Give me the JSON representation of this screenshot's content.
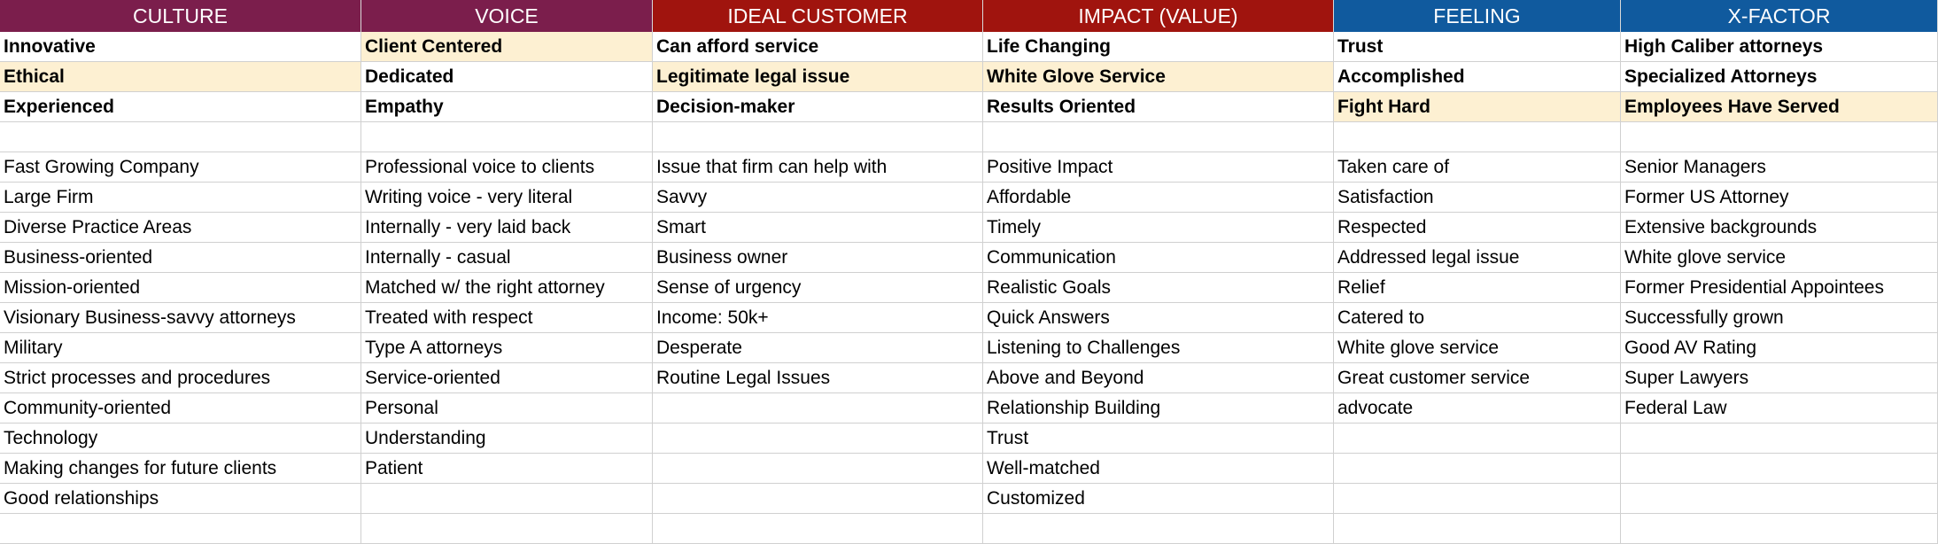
{
  "colors": {
    "culture_header": "#7b1e4c",
    "voice_header": "#7b1e4c",
    "ideal_customer_header": "#a0140e",
    "impact_header": "#a0140e",
    "feeling_header": "#105a9e",
    "xfactor_header": "#105a9e",
    "highlight": "#fdf0d2"
  },
  "columns": [
    {
      "header": "CULTURE",
      "header_color": "#7b1e4c",
      "key": [
        "Innovative",
        "Ethical",
        "Experienced"
      ],
      "highlight": [
        false,
        true,
        false
      ],
      "items": [
        "Fast Growing Company",
        "Large Firm",
        "Diverse Practice Areas",
        "Business-oriented",
        "Mission-oriented",
        "Visionary Business-savvy attorneys",
        "Military",
        "Strict processes and procedures",
        "Community-oriented",
        "Technology",
        "Making changes for future clients",
        "Good relationships"
      ]
    },
    {
      "header": "VOICE",
      "header_color": "#7b1e4c",
      "key": [
        "Client Centered",
        "Dedicated",
        "Empathy"
      ],
      "highlight": [
        true,
        false,
        false
      ],
      "items": [
        "Professional voice to clients",
        "Writing voice - very literal",
        "Internally - very laid back",
        "Internally - casual",
        "Matched w/ the right attorney",
        "Treated with respect",
        "Type A attorneys",
        "Service-oriented",
        "Personal",
        "Understanding",
        "Patient"
      ]
    },
    {
      "header": "IDEAL CUSTOMER",
      "header_color": "#a0140e",
      "key": [
        "Can afford service",
        "Legitimate legal issue",
        "Decision-maker"
      ],
      "highlight": [
        false,
        true,
        false
      ],
      "items": [
        "Issue that firm can help with",
        "Savvy",
        "Smart",
        "Business owner",
        "Sense of urgency",
        "Income: 50k+",
        "Desperate",
        "Routine Legal Issues"
      ]
    },
    {
      "header": "IMPACT (VALUE)",
      "header_color": "#a0140e",
      "key": [
        "Life Changing",
        "White Glove Service",
        "Results Oriented"
      ],
      "highlight": [
        false,
        true,
        false
      ],
      "items": [
        "Positive Impact",
        "Affordable",
        "Timely",
        "Communication",
        "Realistic Goals",
        "Quick Answers",
        "Listening to Challenges",
        "Above and Beyond",
        "Relationship Building",
        "Trust",
        "Well-matched",
        "Customized"
      ]
    },
    {
      "header": "FEELING",
      "header_color": "#105a9e",
      "key": [
        "Trust",
        "Accomplished",
        "Fight Hard"
      ],
      "highlight": [
        false,
        false,
        true
      ],
      "items": [
        "Taken care of",
        "Satisfaction",
        "Respected",
        "Addressed legal issue",
        "Relief",
        "Catered to",
        "White glove service",
        "Great customer service",
        "advocate"
      ]
    },
    {
      "header": "X-FACTOR",
      "header_color": "#105a9e",
      "key": [
        "High Caliber attorneys",
        "Specialized Attorneys",
        "Employees Have Served"
      ],
      "highlight": [
        false,
        false,
        true
      ],
      "items": [
        "Senior Managers",
        "Former US Attorney",
        "Extensive backgrounds",
        "White glove service",
        "Former Presidential Appointees",
        "Successfully grown",
        "Good AV Rating",
        "Super Lawyers",
        "Federal Law"
      ]
    }
  ]
}
